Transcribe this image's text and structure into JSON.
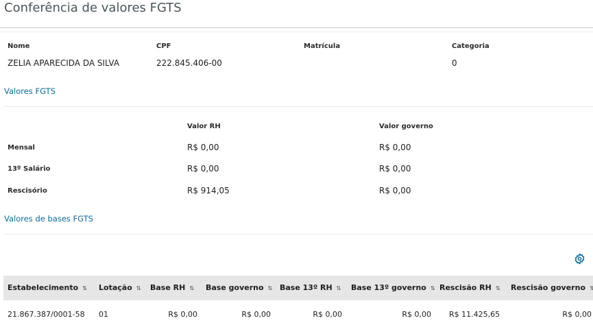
{
  "title": "Conferência de valores FGTS",
  "employee": {
    "labels": {
      "name": "Nome",
      "cpf": "CPF",
      "matricula": "Matrícula",
      "categoria": "Categoria"
    },
    "values": {
      "name": "ZELIA APARECIDA DA SILVA",
      "cpf": "222.845.406-00",
      "matricula": "",
      "categoria": "0"
    }
  },
  "fgts": {
    "section_title": "Valores FGTS",
    "col_rh": "Valor RH",
    "col_gov": "Valor governo",
    "rows": [
      {
        "label": "Mensal",
        "rh": "R$ 0,00",
        "gov": "R$ 0,00"
      },
      {
        "label": "13º Salário",
        "rh": "R$ 0,00",
        "gov": "R$ 0,00"
      },
      {
        "label": "Rescisório",
        "rh": "R$ 914,05",
        "gov": "R$ 0,00"
      }
    ]
  },
  "bases": {
    "section_title": "Valores de bases FGTS",
    "settings_icon": "gear-icon",
    "sort_icon": "sort-arrows-icon",
    "columns": [
      "Estabelecimento",
      "Lotação",
      "Base RH",
      "Base governo",
      "Base 13º RH",
      "Base 13º governo",
      "Rescisão RH",
      "Rescisão governo"
    ],
    "rows": [
      [
        "21.867.387/0001-58",
        "01",
        "R$ 0,00",
        "R$ 0,00",
        "R$ 0,00",
        "R$ 0,00",
        "R$ 11.425,65",
        "R$ 0,00"
      ]
    ]
  },
  "colors": {
    "link": "#0c6b96",
    "header_bg": "#e6e6e6"
  }
}
